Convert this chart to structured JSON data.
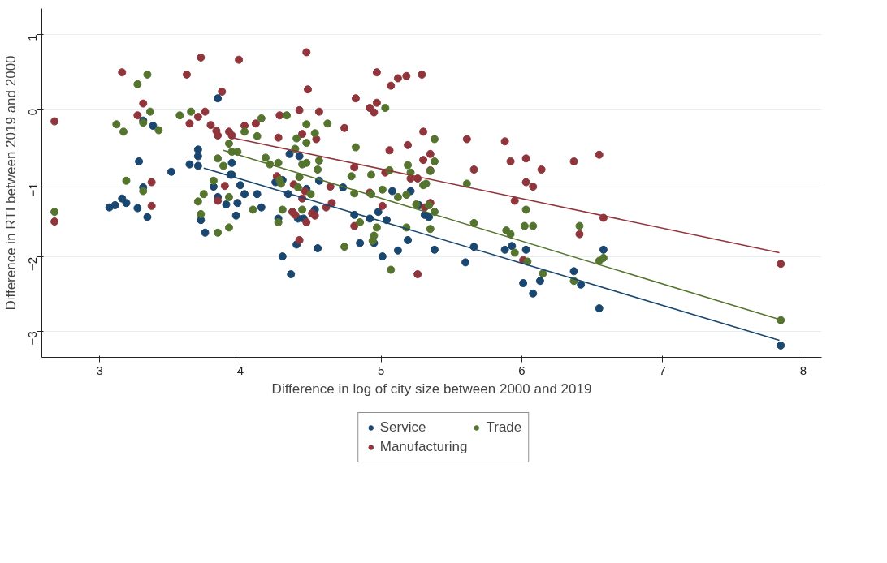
{
  "chart_data": {
    "type": "scatter",
    "xlabel": "Difference in log of city size between 2000 and 2019",
    "ylabel": "Difference in RTI between 2019 and 2000",
    "xlim": [
      2.59,
      8.13
    ],
    "ylim": [
      -3.35,
      1.35
    ],
    "xticks": [
      3,
      4,
      5,
      6,
      7,
      8
    ],
    "yticks": [
      -3,
      -2,
      -1,
      0,
      1
    ],
    "grid": "y",
    "legend": "bottom",
    "marker": "circle",
    "series": [
      {
        "name": "Service",
        "color": "#1a476f",
        "x": [
          3.07,
          3.11,
          3.16,
          3.19,
          3.27,
          3.28,
          3.34,
          3.31,
          3.31,
          3.38,
          3.51,
          3.64,
          3.7,
          3.7,
          3.7,
          3.72,
          3.75,
          3.81,
          3.84,
          3.9,
          3.93,
          3.97,
          3.84,
          3.94,
          3.94,
          4.0,
          4.03,
          4.12,
          3.98,
          4.15,
          4.25,
          4.3,
          4.34,
          4.35,
          4.42,
          4.47,
          4.56,
          4.53,
          4.41,
          4.45,
          4.27,
          4.4,
          4.55,
          4.3,
          4.36,
          4.73,
          4.81,
          4.85,
          4.98,
          4.92,
          4.95,
          5.01,
          5.04,
          5.08,
          5.12,
          5.19,
          5.21,
          5.27,
          5.31,
          5.34,
          5.38,
          5.6,
          5.66,
          5.88,
          5.93,
          6.03,
          6.01,
          6.13,
          6.08,
          6.37,
          6.42,
          6.55,
          6.58,
          7.84
        ],
        "values": [
          -1.33,
          -1.3,
          -1.21,
          -1.27,
          -1.34,
          -0.71,
          -1.46,
          -1.06,
          -0.16,
          -0.23,
          -0.85,
          -0.75,
          -0.77,
          -0.64,
          -0.55,
          -1.5,
          -1.67,
          -1.05,
          -1.19,
          -1.29,
          -0.89,
          -1.44,
          0.14,
          -0.73,
          -0.89,
          -1.03,
          -1.15,
          -1.15,
          -1.27,
          -1.33,
          -0.99,
          -0.96,
          -1.15,
          -0.61,
          -0.64,
          -1.08,
          -0.97,
          -1.36,
          -1.48,
          -1.48,
          -1.48,
          -1.83,
          -1.88,
          -1.99,
          -2.23,
          -1.06,
          -1.43,
          -1.81,
          -1.39,
          -1.48,
          -1.81,
          -1.99,
          -1.5,
          -1.11,
          -1.91,
          -1.77,
          -1.11,
          -1.3,
          -1.43,
          -1.46,
          -1.9,
          -2.07,
          -1.86,
          -1.9,
          -1.85,
          -1.9,
          -2.35,
          -2.32,
          -2.49,
          -2.19,
          -2.37,
          -2.69,
          -1.9,
          -3.19
        ]
      },
      {
        "name": "Manufacturing",
        "color": "#90353b",
        "x": [
          2.68,
          2.68,
          3.16,
          3.31,
          3.27,
          3.37,
          3.37,
          3.62,
          3.72,
          3.87,
          3.75,
          3.7,
          3.64,
          3.79,
          3.83,
          3.84,
          3.92,
          3.94,
          3.89,
          3.84,
          3.99,
          4.47,
          4.48,
          4.28,
          4.42,
          4.56,
          4.03,
          4.11,
          4.27,
          4.44,
          4.54,
          4.74,
          4.82,
          4.97,
          4.97,
          4.92,
          4.95,
          5.07,
          5.12,
          5.18,
          5.29,
          5.3,
          5.19,
          5.06,
          5.3,
          4.81,
          5.03,
          5.21,
          5.26,
          4.64,
          4.92,
          4.26,
          4.38,
          4.46,
          4.44,
          4.65,
          4.61,
          4.51,
          4.37,
          4.39,
          4.47,
          4.53,
          5.01,
          4.81,
          4.42,
          5.26,
          5.35,
          5.35,
          5.61,
          5.66,
          5.88,
          5.92,
          6.03,
          6.14,
          6.37,
          6.55,
          6.03,
          6.08,
          5.95,
          6.41,
          5.35,
          5.31,
          6.58,
          6.01,
          7.84
        ],
        "values": [
          -0.17,
          -1.52,
          0.49,
          0.07,
          -0.09,
          -0.99,
          -1.31,
          0.46,
          0.69,
          0.23,
          -0.04,
          -0.11,
          -0.2,
          -0.22,
          -0.3,
          -0.36,
          -0.31,
          -0.36,
          -1.04,
          -1.24,
          0.66,
          0.76,
          0.26,
          -0.09,
          -0.02,
          -0.04,
          -0.23,
          -0.2,
          -0.39,
          -0.34,
          -0.41,
          -0.26,
          0.14,
          0.49,
          0.08,
          0.01,
          -0.05,
          0.31,
          0.41,
          0.44,
          0.46,
          -0.31,
          -0.49,
          -0.56,
          -0.69,
          -0.79,
          -0.86,
          -0.94,
          -0.94,
          -1.05,
          -1.13,
          -0.91,
          -1.02,
          -1.11,
          -1.21,
          -1.27,
          -1.33,
          -1.41,
          -1.39,
          -1.43,
          -1.53,
          -1.44,
          -1.31,
          -1.58,
          -1.77,
          -2.23,
          -0.61,
          -0.83,
          -0.41,
          -0.82,
          -0.44,
          -0.71,
          -0.67,
          -0.82,
          -0.71,
          -0.62,
          -0.99,
          -1.05,
          -1.24,
          -1.69,
          -1.27,
          -1.33,
          -1.47,
          -2.04,
          -2.09
        ]
      },
      {
        "name": "Trade",
        "color": "#55752f",
        "x": [
          2.68,
          3.34,
          3.27,
          3.36,
          3.31,
          3.42,
          3.12,
          3.17,
          3.57,
          3.65,
          3.19,
          3.31,
          3.81,
          3.74,
          3.7,
          3.72,
          3.84,
          3.92,
          3.92,
          3.84,
          3.92,
          3.94,
          3.88,
          3.98,
          4.03,
          4.12,
          4.15,
          4.33,
          4.47,
          4.62,
          4.53,
          4.4,
          4.47,
          4.39,
          4.18,
          4.21,
          4.27,
          4.44,
          4.47,
          4.56,
          4.55,
          4.42,
          4.28,
          4.29,
          4.82,
          4.79,
          4.93,
          5.03,
          5.19,
          5.21,
          5.35,
          5.06,
          4.41,
          4.5,
          4.81,
          4.93,
          5.01,
          5.12,
          5.18,
          5.3,
          5.25,
          5.34,
          4.09,
          4.3,
          4.44,
          4.27,
          4.85,
          4.97,
          4.95,
          4.94,
          5.18,
          4.74,
          5.07,
          5.38,
          5.38,
          5.32,
          5.61,
          5.38,
          5.35,
          5.66,
          5.89,
          5.92,
          5.95,
          6.03,
          6.02,
          6.08,
          6.41,
          6.04,
          6.15,
          6.37,
          6.55,
          6.58,
          7.84
        ],
        "values": [
          -1.39,
          0.46,
          0.33,
          -0.04,
          -0.19,
          -0.29,
          -0.21,
          -0.31,
          -0.09,
          -0.04,
          -0.97,
          -1.11,
          -0.97,
          -1.15,
          -1.25,
          -1.42,
          -1.67,
          -1.6,
          -1.19,
          -0.67,
          -0.47,
          -0.58,
          -0.77,
          -0.58,
          -0.31,
          -0.37,
          -0.13,
          -0.09,
          -0.21,
          -0.2,
          -0.33,
          -0.4,
          -0.46,
          -0.54,
          -0.66,
          -0.75,
          -0.73,
          -0.75,
          -0.73,
          -0.7,
          -0.82,
          -0.92,
          -0.96,
          -1.01,
          -0.52,
          -0.91,
          -0.89,
          0.01,
          -0.76,
          -0.86,
          -0.84,
          -0.83,
          -1.06,
          -1.15,
          -1.14,
          -1.15,
          -1.09,
          -1.19,
          -1.16,
          -1.03,
          -1.29,
          -1.3,
          -1.36,
          -1.36,
          -1.36,
          -1.53,
          -1.53,
          -1.6,
          -1.71,
          -1.78,
          -1.6,
          -1.86,
          -2.17,
          -0.41,
          -0.71,
          -1.01,
          -1.01,
          -1.39,
          -1.62,
          -1.54,
          -1.64,
          -1.69,
          -1.94,
          -1.36,
          -1.58,
          -1.58,
          -1.58,
          -2.06,
          -2.22,
          -2.32,
          -2.05,
          -2.01,
          -2.85
        ]
      },
      {
        "color": "#1a476f",
        "type": "line",
        "marker": "none",
        "x": [
          3.74,
          7.83
        ],
        "values": [
          -0.8,
          -3.12
        ]
      },
      {
        "color": "#90353b",
        "type": "line",
        "marker": "none",
        "x": [
          3.94,
          7.83
        ],
        "values": [
          -0.39,
          -1.94
        ]
      },
      {
        "color": "#55752f",
        "type": "line",
        "marker": "none",
        "x": [
          3.88,
          7.83
        ],
        "values": [
          -0.56,
          -2.84
        ]
      }
    ]
  }
}
